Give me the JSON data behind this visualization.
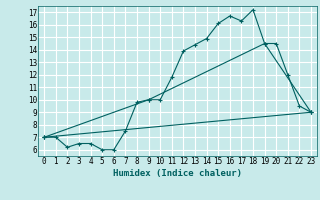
{
  "xlabel": "Humidex (Indice chaleur)",
  "background_color": "#c8eaea",
  "grid_color": "#ffffff",
  "line_color": "#006060",
  "xlim": [
    -0.5,
    23.5
  ],
  "ylim": [
    5.5,
    17.5
  ],
  "xticks": [
    0,
    1,
    2,
    3,
    4,
    5,
    6,
    7,
    8,
    9,
    10,
    11,
    12,
    13,
    14,
    15,
    16,
    17,
    18,
    19,
    20,
    21,
    22,
    23
  ],
  "yticks": [
    6,
    7,
    8,
    9,
    10,
    11,
    12,
    13,
    14,
    15,
    16,
    17
  ],
  "line1_x": [
    0,
    1,
    2,
    3,
    4,
    5,
    6,
    7,
    8,
    9,
    10,
    11,
    12,
    13,
    14,
    15,
    16,
    17,
    18,
    19,
    20,
    21,
    22,
    23
  ],
  "line1_y": [
    7.0,
    7.0,
    6.2,
    6.5,
    6.5,
    6.0,
    6.0,
    7.5,
    9.8,
    10.0,
    10.0,
    11.8,
    13.9,
    14.4,
    14.9,
    16.1,
    16.7,
    16.3,
    17.2,
    14.5,
    14.5,
    12.0,
    9.5,
    9.0
  ],
  "line2_x": [
    0,
    23
  ],
  "line2_y": [
    7.0,
    9.0
  ],
  "line3_x": [
    0,
    9,
    19,
    23
  ],
  "line3_y": [
    7.0,
    10.0,
    14.5,
    9.0
  ],
  "tick_fontsize": 5.5,
  "xlabel_fontsize": 6.5
}
